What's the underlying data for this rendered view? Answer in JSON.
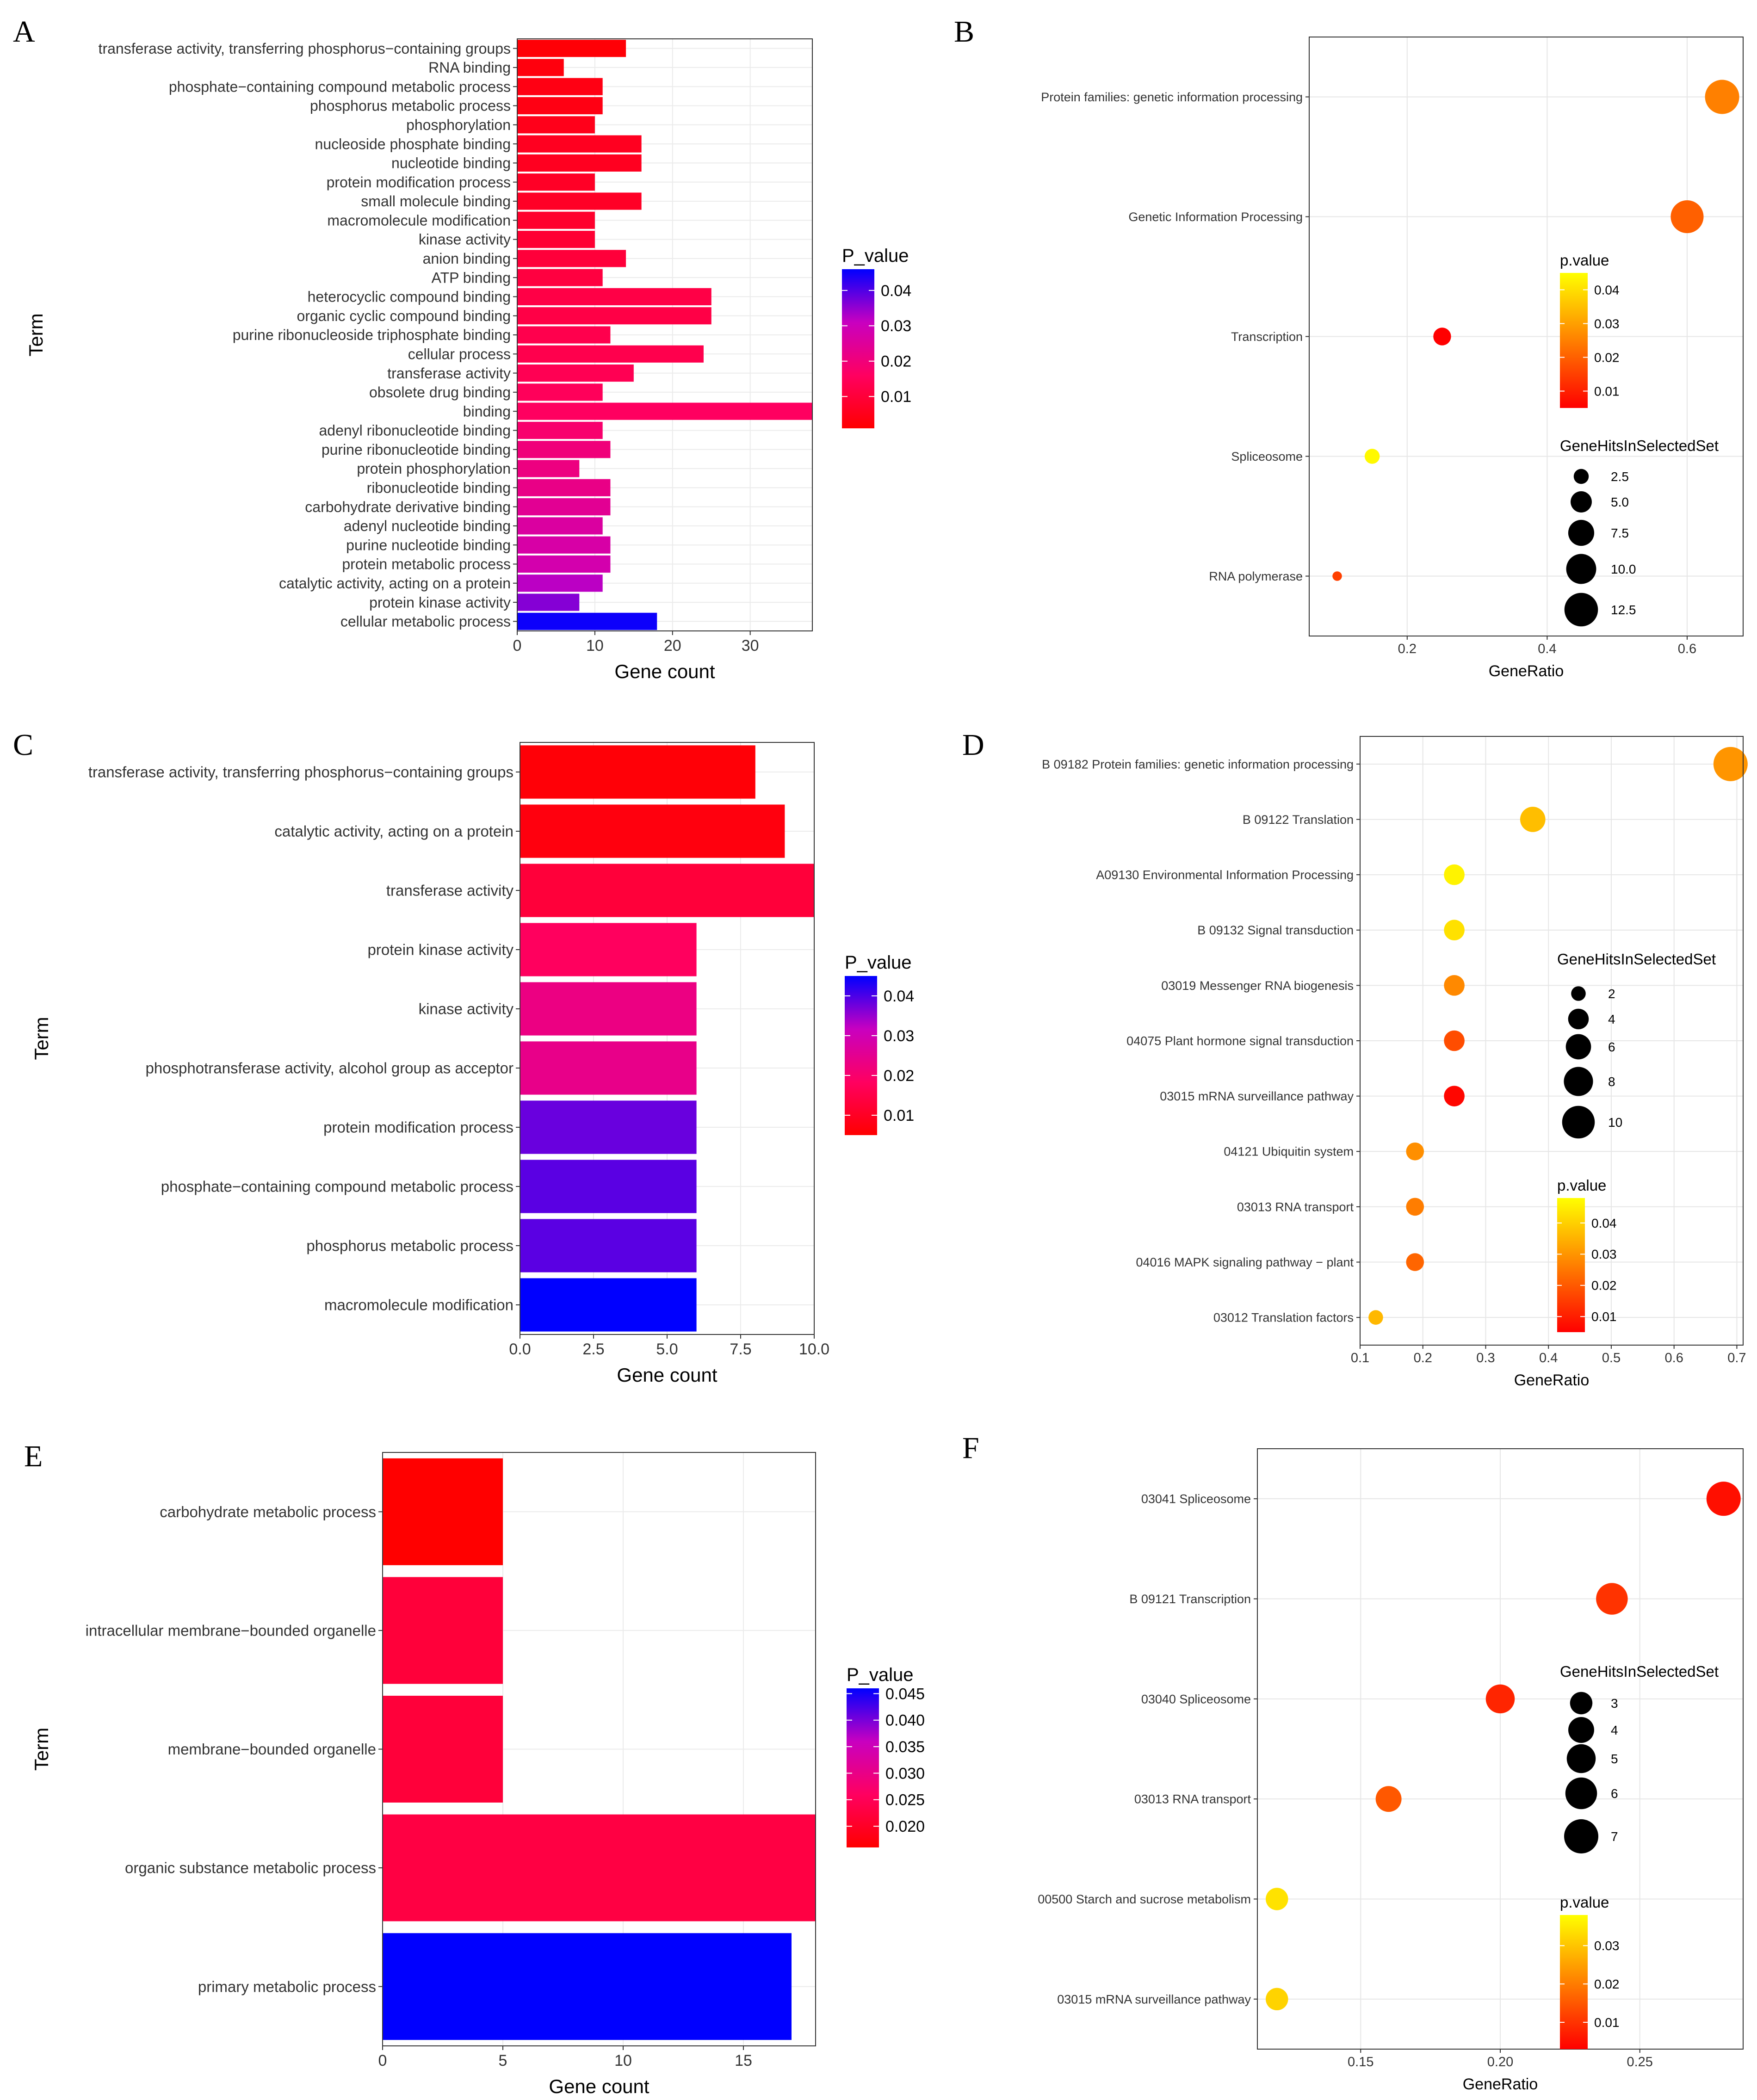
{
  "figure": {
    "bar_gradient": [
      "#ff0000",
      "#ff0060",
      "#c800c0",
      "#0000ff"
    ],
    "dot_gradient": [
      "#ff0000",
      "#ff8000",
      "#ffff00"
    ]
  },
  "chart_data": [
    {
      "panel": "A",
      "type": "bar",
      "orientation": "horizontal",
      "xlabel": "Gene count",
      "ylabel": "Term",
      "xlim": [
        0,
        38
      ],
      "xticks": [
        0,
        10,
        20,
        30
      ],
      "legend_title": "P_value",
      "legend_ticks": [
        "0.04",
        "0.03",
        "0.02",
        "0.01"
      ],
      "legend_range": [
        0.001,
        0.046
      ],
      "categories": [
        "transferase activity, transferring phosphorus−containing groups",
        "RNA binding",
        "phosphate−containing compound metabolic process",
        "phosphorus metabolic process",
        "phosphorylation",
        "nucleoside phosphate binding",
        "nucleotide binding",
        "protein modification process",
        "small molecule binding",
        "macromolecule modification",
        "kinase activity",
        "anion binding",
        "ATP binding",
        "heterocyclic compound binding",
        "organic cyclic compound binding",
        "purine ribonucleoside triphosphate binding",
        "cellular process",
        "transferase activity",
        "obsolete drug binding",
        "binding",
        "adenyl ribonucleotide binding",
        "purine ribonucleotide binding",
        "protein phosphorylation",
        "ribonucleotide binding",
        "carbohydrate derivative binding",
        "adenyl nucleotide binding",
        "purine nucleotide binding",
        "protein metabolic process",
        "catalytic activity, acting on a protein",
        "protein kinase activity",
        "cellular metabolic process"
      ],
      "values": [
        14,
        6,
        11,
        11,
        10,
        16,
        16,
        10,
        16,
        10,
        10,
        14,
        11,
        25,
        25,
        12,
        24,
        15,
        11,
        38,
        11,
        12,
        8,
        12,
        12,
        11,
        12,
        12,
        11,
        8,
        18
      ],
      "p_values": [
        0.002,
        0.003,
        0.004,
        0.004,
        0.005,
        0.006,
        0.006,
        0.007,
        0.007,
        0.008,
        0.009,
        0.01,
        0.011,
        0.012,
        0.012,
        0.013,
        0.013,
        0.014,
        0.015,
        0.016,
        0.018,
        0.02,
        0.021,
        0.022,
        0.024,
        0.026,
        0.027,
        0.028,
        0.032,
        0.036,
        0.045
      ]
    },
    {
      "panel": "B",
      "type": "scatter",
      "xlabel": "GeneRatio",
      "xlim": [
        0.06,
        0.68
      ],
      "xticks": [
        0.2,
        0.4,
        0.6
      ],
      "xtick_labels": [
        "0.2",
        "0.4",
        "0.6"
      ],
      "categories": [
        "Protein families: genetic information processing",
        "Genetic Information Processing",
        "Transcription",
        "Spliceosome",
        "RNA polymerase"
      ],
      "x": [
        0.65,
        0.6,
        0.25,
        0.15,
        0.1
      ],
      "sizes": [
        13,
        12,
        3.5,
        2.5,
        1
      ],
      "p_values": [
        0.025,
        0.02,
        0.004,
        0.044,
        0.015
      ],
      "color_title": "p.value",
      "color_ticks": [
        0.04,
        0.03,
        0.02,
        0.01
      ],
      "color_tick_labels": [
        "0.04",
        "0.03",
        "0.02",
        "0.01"
      ],
      "color_range": [
        0.005,
        0.045
      ],
      "size_title": "GeneHitsInSelectedSet",
      "size_values": [
        2.5,
        5.0,
        7.5,
        10.0,
        12.5
      ],
      "size_labels": [
        "2.5",
        "5.0",
        "7.5",
        "10.0",
        "12.5"
      ],
      "size_max": 13
    },
    {
      "panel": "C",
      "type": "bar",
      "orientation": "horizontal",
      "xlabel": "Gene count",
      "ylabel": "Term",
      "xlim": [
        0,
        10
      ],
      "xticks": [
        0,
        2.5,
        5,
        7.5,
        10
      ],
      "xtick_labels": [
        "0.0",
        "2.5",
        "5.0",
        "7.5",
        "10.0"
      ],
      "legend_title": "P_value",
      "legend_ticks": [
        "0.04",
        "0.03",
        "0.02",
        "0.01"
      ],
      "legend_range": [
        0.005,
        0.045
      ],
      "categories": [
        "transferase activity, transferring phosphorus−containing groups",
        "catalytic activity, acting on a protein",
        "transferase activity",
        "protein kinase activity",
        "kinase activity",
        "phosphotransferase activity, alcohol group as acceptor",
        "protein modification process",
        "phosphate−containing compound metabolic process",
        "phosphorus metabolic process",
        "macromolecule modification"
      ],
      "values": [
        8,
        9,
        10,
        6,
        6,
        6,
        6,
        6,
        6,
        6
      ],
      "p_values": [
        0.006,
        0.007,
        0.013,
        0.018,
        0.023,
        0.024,
        0.038,
        0.039,
        0.039,
        0.045
      ]
    },
    {
      "panel": "D",
      "type": "scatter",
      "xlabel": "GeneRatio",
      "xlim": [
        0.1,
        0.71
      ],
      "xticks": [
        0.1,
        0.2,
        0.3,
        0.4,
        0.5,
        0.6,
        0.7
      ],
      "xtick_labels": [
        "0.1",
        "0.2",
        "0.3",
        "0.4",
        "0.5",
        "0.6",
        "0.7"
      ],
      "categories": [
        "B  09182 Protein families: genetic information processing",
        "B  09122 Translation",
        "A09130 Environmental Information Processing",
        "B  09132 Signal transduction",
        "03019 Messenger RNA biogenesis",
        "04075 Plant hormone signal transduction",
        "03015 mRNA surveillance pathway",
        "04121 Ubiquitin system",
        "03013 RNA transport",
        "04016 MAPK signaling pathway − plant",
        "03012 Translation factors"
      ],
      "x": [
        0.69,
        0.375,
        0.25,
        0.25,
        0.25,
        0.25,
        0.25,
        0.1875,
        0.1875,
        0.1875,
        0.125
      ],
      "sizes": [
        11,
        6,
        4,
        4,
        4,
        4,
        4,
        3,
        3,
        3,
        2
      ],
      "p_values": [
        0.03,
        0.037,
        0.046,
        0.043,
        0.028,
        0.018,
        0.006,
        0.029,
        0.026,
        0.022,
        0.036
      ],
      "color_title": "p.value",
      "color_ticks": [
        0.04,
        0.03,
        0.02,
        0.01
      ],
      "color_tick_labels": [
        "0.04",
        "0.03",
        "0.02",
        "0.01"
      ],
      "color_range": [
        0.005,
        0.048
      ],
      "size_title": "GeneHitsInSelectedSet",
      "size_values": [
        2,
        4,
        6,
        8,
        10
      ],
      "size_labels": [
        "2",
        "4",
        "6",
        "8",
        "10"
      ],
      "size_max": 11
    },
    {
      "panel": "E",
      "type": "bar",
      "orientation": "horizontal",
      "xlabel": "Gene count",
      "ylabel": "Term",
      "xlim": [
        0,
        18
      ],
      "xticks": [
        0,
        5,
        10,
        15
      ],
      "legend_title": "P_value",
      "legend_ticks": [
        "0.045",
        "0.040",
        "0.035",
        "0.030",
        "0.025",
        "0.020"
      ],
      "legend_range": [
        0.016,
        0.046
      ],
      "categories": [
        "carbohydrate metabolic process",
        "intracellular membrane−bounded organelle",
        "membrane−bounded organelle",
        "organic substance metabolic process",
        "primary metabolic process"
      ],
      "values": [
        5,
        5,
        5,
        18,
        17
      ],
      "p_values": [
        0.016,
        0.022,
        0.022,
        0.023,
        0.046
      ]
    },
    {
      "panel": "F",
      "type": "scatter",
      "xlabel": "GeneRatio",
      "xlim": [
        0.113,
        0.287
      ],
      "xticks": [
        0.15,
        0.2,
        0.25
      ],
      "xtick_labels": [
        "0.15",
        "0.20",
        "0.25"
      ],
      "categories": [
        "03041 Spliceosome",
        "B  09121 Transcription",
        "03040 Spliceosome",
        "03013 RNA transport",
        "00500 Starch and sucrose metabolism",
        "03015 mRNA surveillance pathway"
      ],
      "x": [
        0.28,
        0.24,
        0.2,
        0.16,
        0.12,
        0.12
      ],
      "sizes": [
        7,
        6,
        5,
        4,
        3,
        3
      ],
      "p_values": [
        0.005,
        0.01,
        0.008,
        0.015,
        0.034,
        0.032
      ],
      "color_title": "p.value",
      "color_ticks": [
        0.03,
        0.02,
        0.01
      ],
      "color_tick_labels": [
        "0.03",
        "0.02",
        "0.01"
      ],
      "color_range": [
        0.003,
        0.038
      ],
      "size_title": "GeneHitsInSelectedSet",
      "size_values": [
        3,
        4,
        5,
        6,
        7
      ],
      "size_labels": [
        "3",
        "4",
        "5",
        "6",
        "7"
      ],
      "size_max": 7
    }
  ]
}
